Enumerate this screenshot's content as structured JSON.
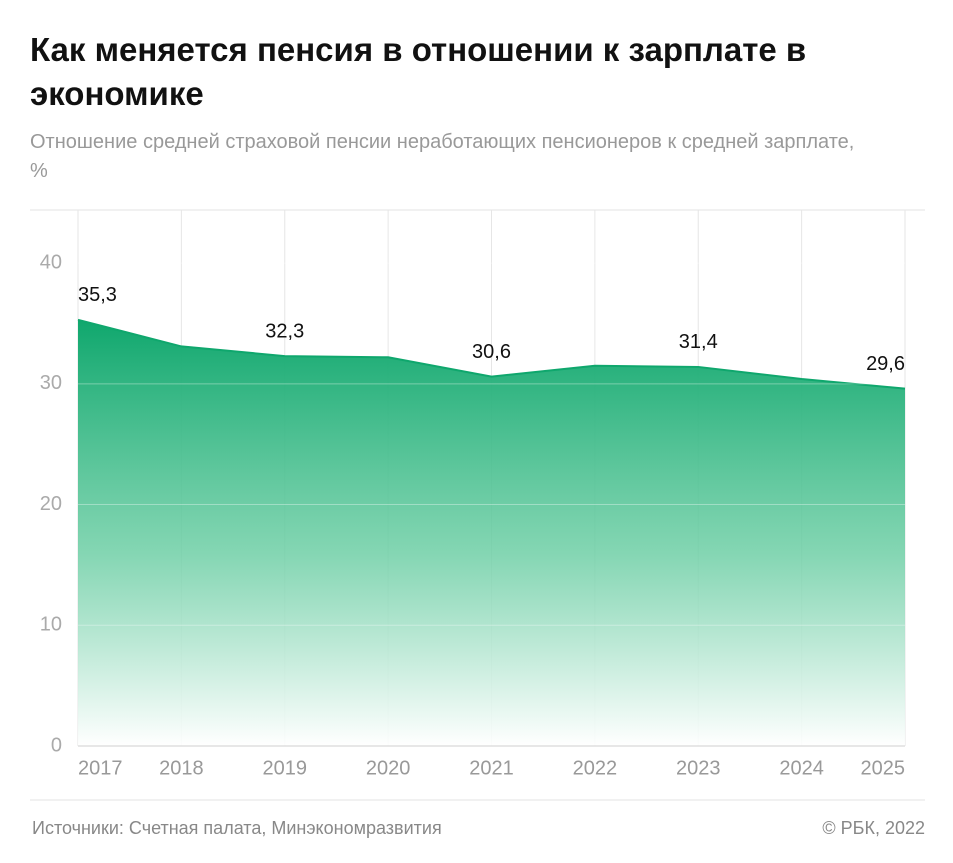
{
  "chart_data": {
    "type": "area",
    "title": "Как меняется пенсия в отношении к зарплате в экономике",
    "subtitle": "Отношение средней страховой пенсии неработающих пенсионеров к средней зарплате, %",
    "categories": [
      "2017",
      "2018",
      "2019",
      "2020",
      "2021",
      "2022",
      "2023",
      "2024",
      "2025"
    ],
    "values": [
      35.3,
      33.1,
      32.3,
      32.2,
      30.6,
      31.5,
      31.4,
      30.4,
      29.6
    ],
    "value_labels": [
      "35,3",
      null,
      "32,3",
      null,
      "30,6",
      null,
      "31,4",
      null,
      "29,6"
    ],
    "color": "#0fa76d",
    "ylim": [
      0,
      44.4
    ],
    "yticks": [
      0,
      10,
      20,
      30,
      40
    ],
    "grid": true,
    "source": "Источники: Счетная палата, Минэкономразвития",
    "credit": "© РБК, 2022"
  }
}
